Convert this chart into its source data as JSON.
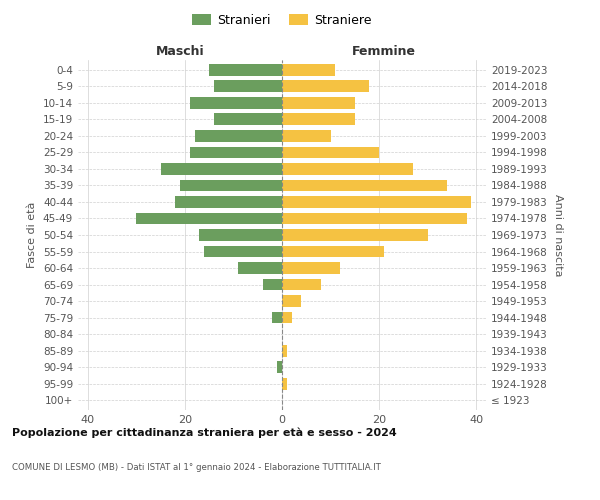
{
  "age_groups": [
    "100+",
    "95-99",
    "90-94",
    "85-89",
    "80-84",
    "75-79",
    "70-74",
    "65-69",
    "60-64",
    "55-59",
    "50-54",
    "45-49",
    "40-44",
    "35-39",
    "30-34",
    "25-29",
    "20-24",
    "15-19",
    "10-14",
    "5-9",
    "0-4"
  ],
  "birth_years": [
    "≤ 1923",
    "1924-1928",
    "1929-1933",
    "1934-1938",
    "1939-1943",
    "1944-1948",
    "1949-1953",
    "1954-1958",
    "1959-1963",
    "1964-1968",
    "1969-1973",
    "1974-1978",
    "1979-1983",
    "1984-1988",
    "1989-1993",
    "1994-1998",
    "1999-2003",
    "2004-2008",
    "2009-2013",
    "2014-2018",
    "2019-2023"
  ],
  "maschi": [
    0,
    0,
    1,
    0,
    0,
    2,
    0,
    4,
    9,
    16,
    17,
    30,
    22,
    21,
    25,
    19,
    18,
    14,
    19,
    14,
    15
  ],
  "femmine": [
    0,
    1,
    0,
    1,
    0,
    2,
    4,
    8,
    12,
    21,
    30,
    38,
    39,
    34,
    27,
    20,
    10,
    15,
    15,
    18,
    11
  ],
  "maschi_color": "#6b9e5e",
  "femmine_color": "#f5c242",
  "title1": "Popolazione per cittadinanza straniera per età e sesso - 2024",
  "title2": "COMUNE DI LESMO (MB) - Dati ISTAT al 1° gennaio 2024 - Elaborazione TUTTITALIA.IT",
  "xlabel_left": "Maschi",
  "xlabel_right": "Femmine",
  "ylabel_left": "Fasce di età",
  "ylabel_right": "Anni di nascita",
  "legend_maschi": "Stranieri",
  "legend_femmine": "Straniere",
  "xlim": 42,
  "bg_color": "#ffffff",
  "grid_color": "#d0d0d0",
  "bar_height": 0.72
}
